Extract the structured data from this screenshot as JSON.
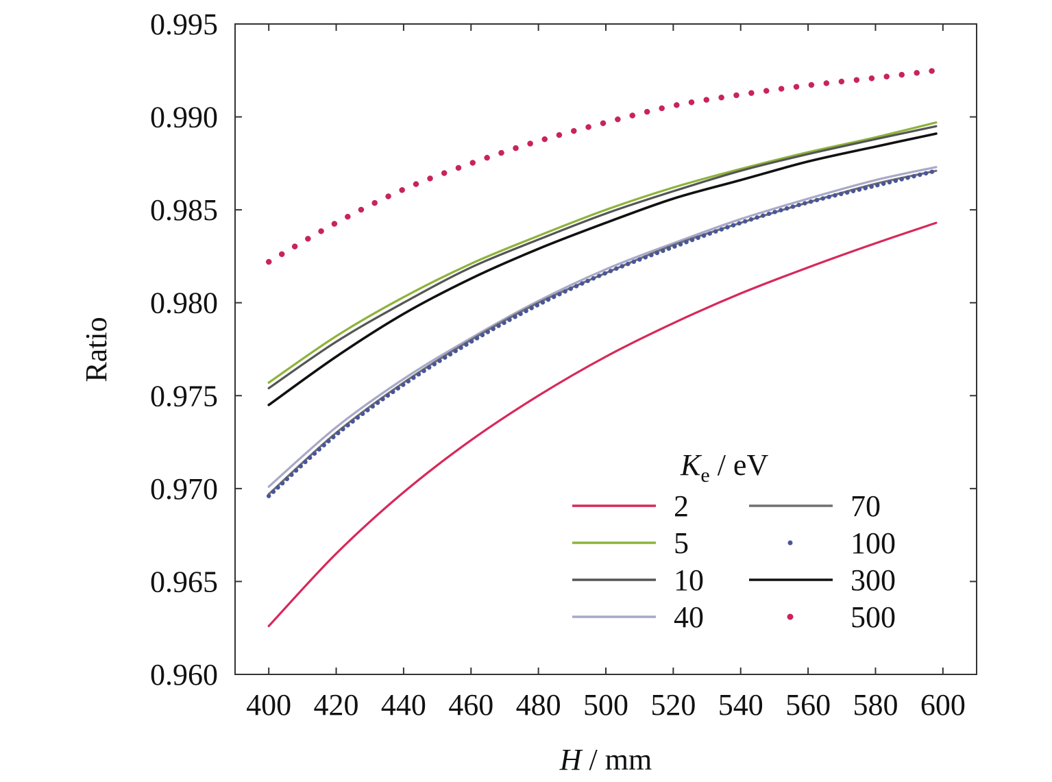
{
  "chart_data": {
    "type": "line",
    "xlabel_var": "H",
    "xlabel_unit": " / mm",
    "ylabel": "Ratio",
    "xlim": [
      390,
      610
    ],
    "ylim": [
      0.96,
      0.995
    ],
    "xticks": [
      400,
      420,
      440,
      460,
      480,
      500,
      520,
      540,
      560,
      580,
      600
    ],
    "yticks": [
      0.96,
      0.965,
      0.97,
      0.975,
      0.98,
      0.985,
      0.99,
      0.995
    ],
    "ytick_labels": [
      "0.960",
      "0.965",
      "0.970",
      "0.975",
      "0.980",
      "0.985",
      "0.990",
      "0.995"
    ],
    "grid": false,
    "legend": {
      "title_var": "K",
      "title_sub": "e",
      "title_unit": " / eV",
      "position": "lower-right",
      "columns": 2
    },
    "x": [
      400,
      420,
      440,
      460,
      480,
      500,
      520,
      540,
      560,
      580,
      598
    ],
    "series": [
      {
        "name": "2",
        "color": "#d6295a",
        "style": "solid",
        "values": [
          0.9626,
          0.9665,
          0.9698,
          0.9726,
          0.975,
          0.9771,
          0.9789,
          0.9805,
          0.9819,
          0.9832,
          0.9843
        ]
      },
      {
        "name": "5",
        "color": "#8db33a",
        "style": "solid",
        "values": [
          0.9757,
          0.9782,
          0.9803,
          0.9821,
          0.9836,
          0.985,
          0.9862,
          0.9872,
          0.9881,
          0.9889,
          0.9897
        ]
      },
      {
        "name": "10",
        "color": "#555555",
        "style": "solid",
        "values": [
          0.9754,
          0.9779,
          0.98,
          0.9819,
          0.9834,
          0.9848,
          0.986,
          0.9871,
          0.988,
          0.9888,
          0.9895
        ]
      },
      {
        "name": "40",
        "color": "#a8a8c8",
        "style": "solid",
        "values": [
          0.9701,
          0.9733,
          0.9759,
          0.9781,
          0.9801,
          0.9818,
          0.9832,
          0.9845,
          0.9856,
          0.9866,
          0.9873
        ]
      },
      {
        "name": "70",
        "color": "#707070",
        "style": "solid",
        "values": [
          0.9697,
          0.973,
          0.9757,
          0.978,
          0.98,
          0.9816,
          0.9831,
          0.9843,
          0.9854,
          0.9864,
          0.9871
        ]
      },
      {
        "name": "100",
        "color": "#4a5699",
        "style": "dotted",
        "values": [
          0.9696,
          0.9729,
          0.9756,
          0.9779,
          0.9799,
          0.9816,
          0.983,
          0.9843,
          0.9854,
          0.9863,
          0.9871
        ]
      },
      {
        "name": "300",
        "color": "#111111",
        "style": "solid",
        "values": [
          0.9745,
          0.9771,
          0.9794,
          0.9813,
          0.9829,
          0.9843,
          0.9856,
          0.9866,
          0.9876,
          0.9884,
          0.9891
        ]
      },
      {
        "name": "500",
        "color": "#c8245c",
        "style": "dotted",
        "values": [
          0.9822,
          0.9843,
          0.9861,
          0.9875,
          0.9887,
          0.9897,
          0.9906,
          0.9912,
          0.9917,
          0.9921,
          0.9925
        ]
      }
    ]
  }
}
